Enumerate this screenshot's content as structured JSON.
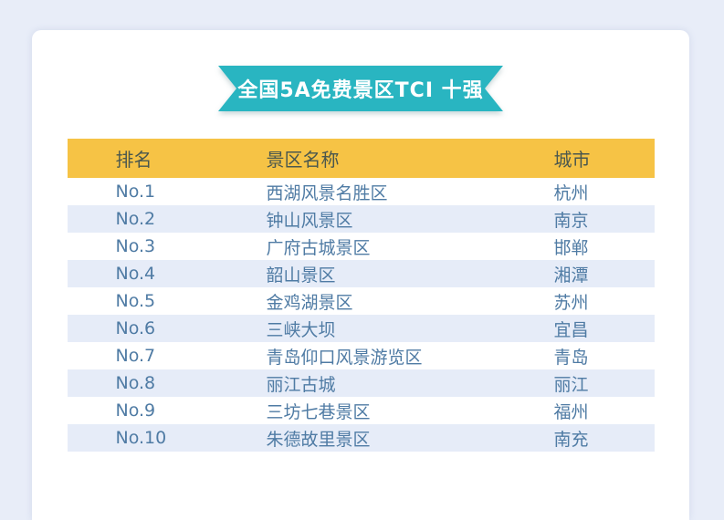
{
  "page": {
    "background_color": "#e8edf8",
    "card_background": "#ffffff"
  },
  "banner": {
    "title": "全国5A免费景区TCI 十强",
    "ribbon_color": "#29b5c1",
    "text_color": "#ffffff"
  },
  "table": {
    "header_background": "#f6c345",
    "header_text_color": "#4a574e",
    "row_text_color": "#4f7ba4",
    "stripe_color": "#e6ecf8"
  },
  "chart_data": {
    "type": "table",
    "title": "全国5A免费景区TCI 十强",
    "columns": [
      "排名",
      "景区名称",
      "城市"
    ],
    "rows": [
      [
        "No.1",
        "西湖风景名胜区",
        "杭州"
      ],
      [
        "No.2",
        "钟山风景区",
        "南京"
      ],
      [
        "No.3",
        "广府古城景区",
        "邯郸"
      ],
      [
        "No.4",
        "韶山景区",
        "湘潭"
      ],
      [
        "No.5",
        "金鸡湖景区",
        "苏州"
      ],
      [
        "No.6",
        "三峡大坝",
        "宜昌"
      ],
      [
        "No.7",
        "青岛仰口风景游览区",
        "青岛"
      ],
      [
        "No.8",
        "丽江古城",
        "丽江"
      ],
      [
        "No.9",
        "三坊七巷景区",
        "福州"
      ],
      [
        "No.10",
        "朱德故里景区",
        "南充"
      ]
    ]
  }
}
